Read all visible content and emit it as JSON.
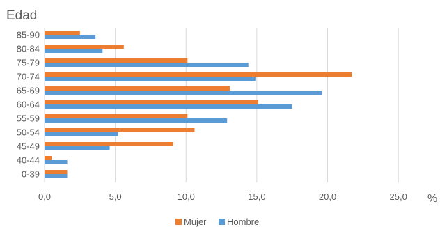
{
  "chart_data": {
    "type": "bar",
    "orientation": "horizontal",
    "ylabel": "Edad",
    "xunit": "%",
    "categories": [
      "0-39",
      "40-44",
      "45-49",
      "50-54",
      "55-59",
      "60-64",
      "65-69",
      "70-74",
      "75-79",
      "80-84",
      "85-90"
    ],
    "series": [
      {
        "name": "Mujer",
        "color": "#ED7D31",
        "values": [
          1.6,
          0.5,
          9.1,
          10.6,
          10.1,
          15.1,
          13.1,
          21.7,
          10.1,
          5.6,
          2.5
        ]
      },
      {
        "name": "Hombre",
        "color": "#5B9BD5",
        "values": [
          1.6,
          1.6,
          4.6,
          5.2,
          12.9,
          17.5,
          19.6,
          14.9,
          14.4,
          4.1,
          3.6
        ]
      }
    ],
    "xlim": [
      0,
      27.5
    ],
    "xticks": [
      "0,0",
      "5,0",
      "10,0",
      "15,0",
      "20,0",
      "25,0"
    ],
    "grid": "vertical",
    "legend": "bottom"
  }
}
